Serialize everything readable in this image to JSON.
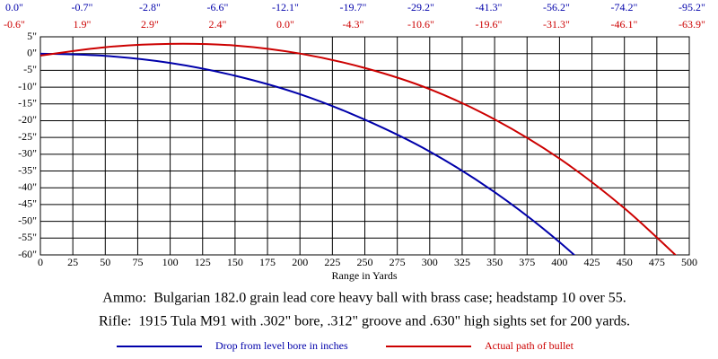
{
  "chart_data": {
    "type": "line",
    "xlabel": "Range in Yards",
    "notes": [
      "Ammo:  Bulgarian 182.0 grain lead core heavy ball with brass case; headstamp 10 over 55.",
      "Rifle:  1915 Tula M91 with .302\" bore, .312\" groove and .630\" high sights set for 200 yards."
    ],
    "x": [
      0,
      50,
      100,
      150,
      200,
      250,
      300,
      350,
      400,
      450,
      500
    ],
    "series": [
      {
        "name": "Drop from level bore in inches",
        "color": "#0000aa",
        "values": [
          0.0,
          -0.7,
          -2.8,
          -6.6,
          -12.1,
          -19.7,
          -29.2,
          -41.3,
          -56.2,
          -74.2,
          -95.2
        ],
        "value_labels": [
          "0.0\"",
          "-0.7\"",
          "-2.8\"",
          "-6.6\"",
          "-12.1\"",
          "-19.7\"",
          "-29.2\"",
          "-41.3\"",
          "-56.2\"",
          "-74.2\"",
          "-95.2\""
        ]
      },
      {
        "name": "Actual path of bullet",
        "color": "#cc0000",
        "values": [
          -0.6,
          1.9,
          2.9,
          2.4,
          0.0,
          -4.3,
          -10.6,
          -19.6,
          -31.3,
          -46.1,
          -63.9
        ],
        "value_labels": [
          "-0.6\"",
          "1.9\"",
          "2.9\"",
          "2.4\"",
          "0.0\"",
          "-4.3\"",
          "-10.6\"",
          "-19.6\"",
          "-31.3\"",
          "-46.1\"",
          "-63.9\""
        ]
      }
    ],
    "xlim": [
      0,
      500
    ],
    "xticks": [
      0,
      25,
      50,
      75,
      100,
      125,
      150,
      175,
      200,
      225,
      250,
      275,
      300,
      325,
      350,
      375,
      400,
      425,
      450,
      475,
      500
    ],
    "ylim": [
      -60,
      5
    ],
    "yticks": [
      {
        "value": 5,
        "label": "5\""
      },
      {
        "value": 0,
        "label": "0\""
      },
      {
        "value": -5,
        "label": "-5\""
      },
      {
        "value": -10,
        "label": "-10\""
      },
      {
        "value": -15,
        "label": "-15\""
      },
      {
        "value": -20,
        "label": "-20\""
      },
      {
        "value": -25,
        "label": "-25\""
      },
      {
        "value": -30,
        "label": "-30\""
      },
      {
        "value": -35,
        "label": "-35\""
      },
      {
        "value": -40,
        "label": "-40\""
      },
      {
        "value": -45,
        "label": "-45\""
      },
      {
        "value": -50,
        "label": "-50\""
      },
      {
        "value": -55,
        "label": "-55\""
      },
      {
        "value": -60,
        "label": "-60\""
      }
    ],
    "grid": true,
    "legend": "bottom"
  }
}
